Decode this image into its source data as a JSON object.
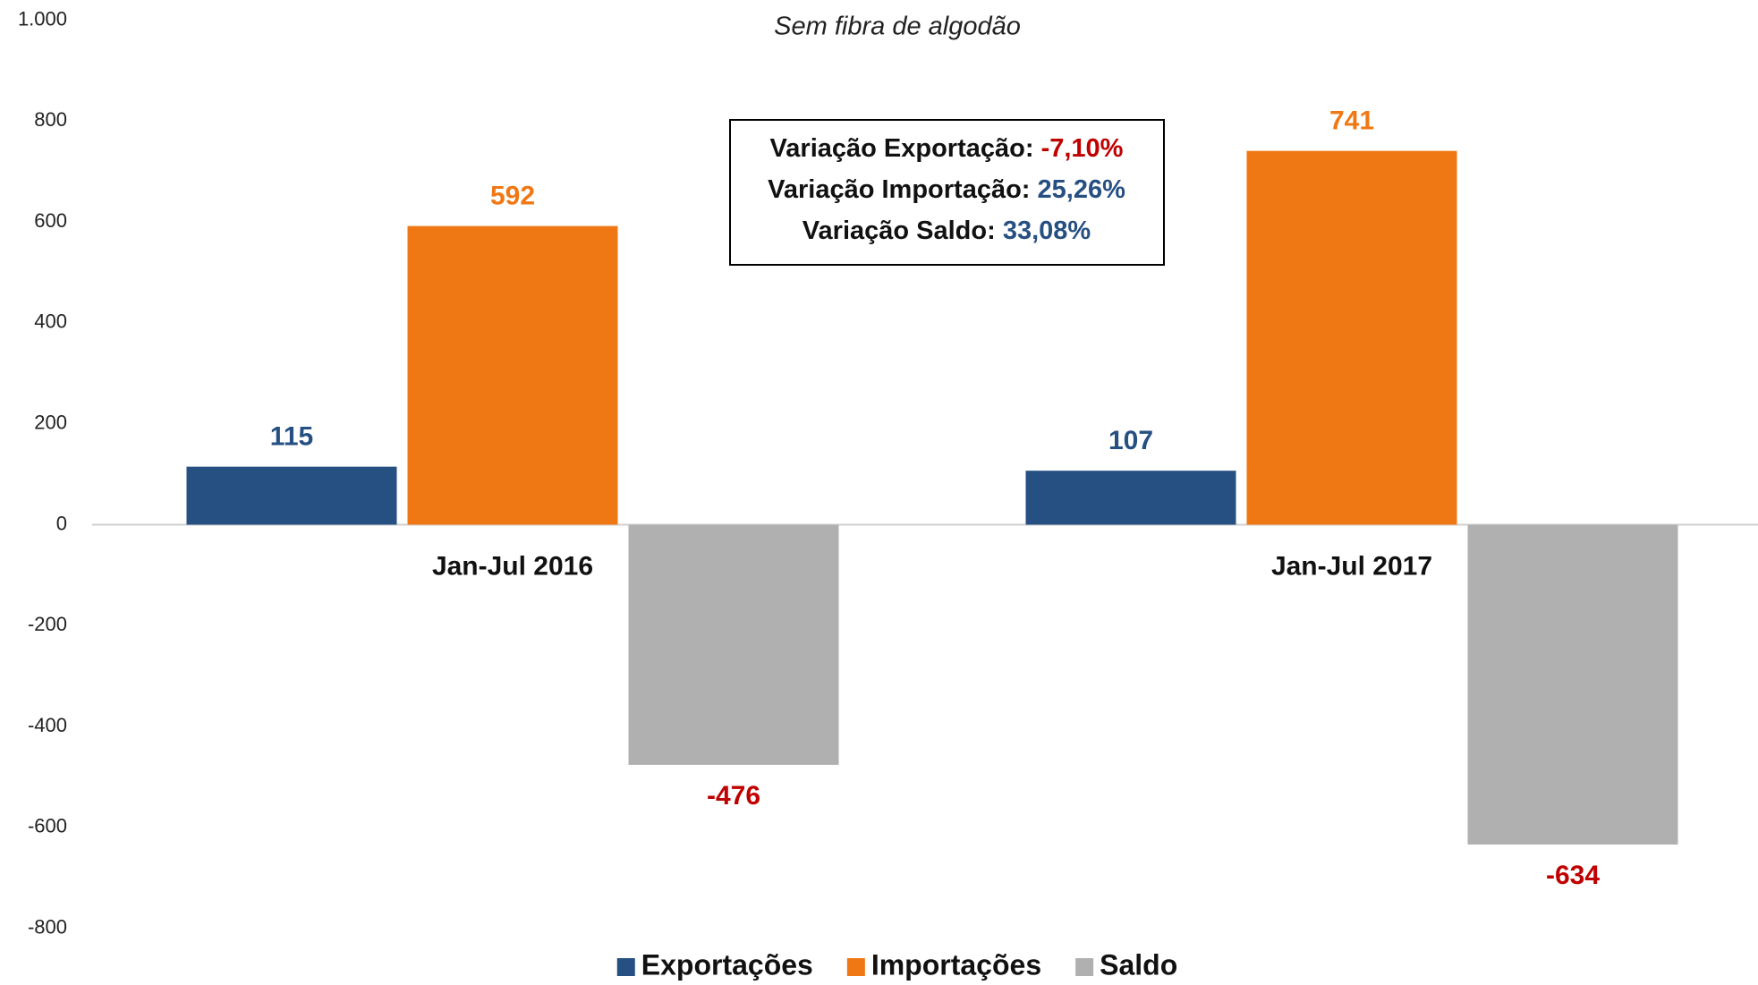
{
  "chart_data": {
    "type": "bar",
    "subtitle": "Sem fibra de algodão",
    "categories": [
      "Jan-Jul 2016",
      "Jan-Jul 2017"
    ],
    "series": [
      {
        "name": "Exportações",
        "color": "#264f82",
        "label_color": "#264f82",
        "values": [
          115,
          107
        ]
      },
      {
        "name": "Importações",
        "color": "#f07814",
        "label_color": "#f07814",
        "values": [
          592,
          741
        ]
      },
      {
        "name": "Saldo",
        "color": "#b0b0b0",
        "label_color": "#c00000",
        "values": [
          -476,
          -634
        ]
      }
    ],
    "ylim": [
      -800,
      1000
    ],
    "yticks": [
      -800,
      -600,
      -400,
      -200,
      0,
      200,
      400,
      600,
      800,
      {
        "value": 1000,
        "label": "1.000"
      }
    ],
    "legend": "bottom",
    "annotations": [
      {
        "label": "Variação Exportação:",
        "value": "-7,10%",
        "color": "#c00000"
      },
      {
        "label": "Variação Importação:",
        "value": "25,26%",
        "color": "#264f82"
      },
      {
        "label": "Variação Saldo:",
        "value": "33,08%",
        "color": "#264f82"
      }
    ]
  }
}
